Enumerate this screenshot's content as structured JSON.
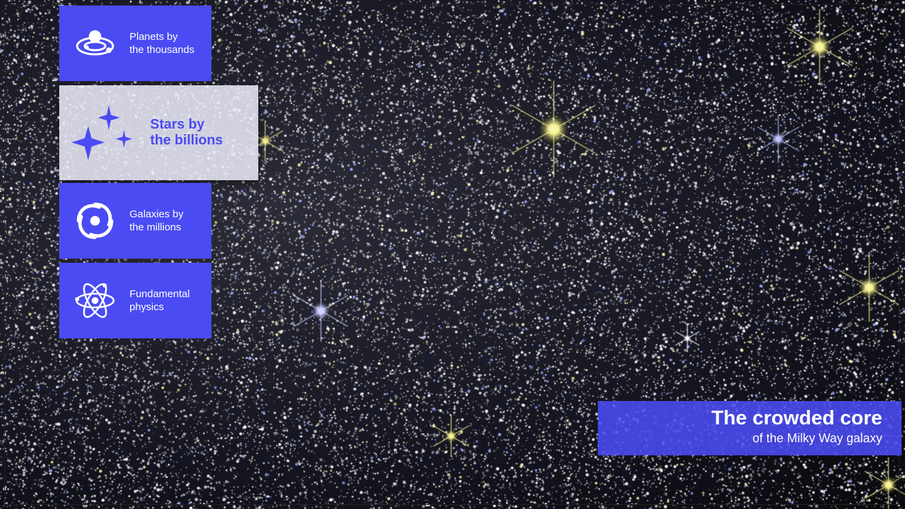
{
  "menu": {
    "items": [
      {
        "id": "planets",
        "icon": "planet-orbit-icon",
        "label_line1": "Planets by",
        "label_line2": "the thousands"
      },
      {
        "id": "stars",
        "icon": "sparkle-stars-icon",
        "label_line1": "Stars by",
        "label_line2": "the billions"
      },
      {
        "id": "galaxies",
        "icon": "spiral-galaxy-icon",
        "label_line1": "Galaxies by",
        "label_line2": "the millions"
      },
      {
        "id": "physics",
        "icon": "atom-icon",
        "label_line1": "Fundamental",
        "label_line2": "physics"
      }
    ],
    "selected": "stars"
  },
  "caption": {
    "title": "The crowded core",
    "subtitle": "of the Milky Way galaxy"
  },
  "colors": {
    "accent": "#4a4bf3",
    "selected_bg": "#ececfa",
    "star_yellow": "#f4f08a",
    "star_blue": "#b9bcff"
  }
}
